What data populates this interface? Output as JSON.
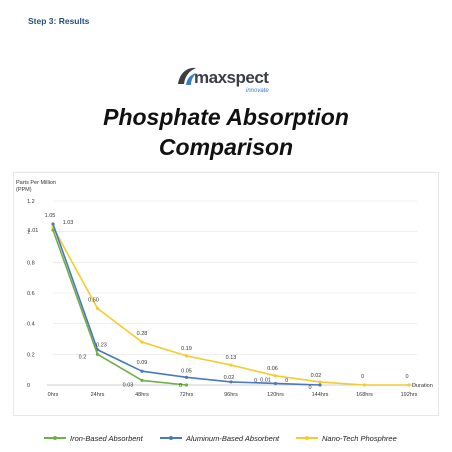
{
  "header": {
    "step_label": "Step 3: Results"
  },
  "logo": {
    "word": "maxspect",
    "tagline": "innovate"
  },
  "title_line1": "Phosphate Absorption",
  "title_line2": "Comparison",
  "colors": {
    "iron": "#6fb044",
    "aluminum": "#4a78b8",
    "nano": "#f2cc30",
    "grid": "#e4e4e4",
    "axis": "#bfbfbf",
    "label": "#333333"
  },
  "chart_data": {
    "type": "line",
    "ylabel": "Parts Per Million (PPM)",
    "ylabel_lines": [
      "Parts Per Million",
      "(PPM)"
    ],
    "xlabel": "Duration",
    "categories": [
      "0hrs",
      "24hrs",
      "48hrs",
      "72hrs",
      "96hrs",
      "120hrs",
      "144hrs",
      "168hrs",
      "192hrs"
    ],
    "ylim": [
      0,
      1.2
    ],
    "yticks": [
      0,
      0.2,
      0.4,
      0.6,
      0.8,
      1,
      1.2
    ],
    "ytick_labels": [
      "0",
      "0.2",
      "0.4",
      "0.6",
      "0.8",
      "1",
      "1.2"
    ],
    "grid": true,
    "legend_position": "bottom",
    "series": [
      {
        "name": "Iron-Based Absorbent",
        "color_key": "iron",
        "values": [
          1.01,
          0.2,
          0.03,
          0,
          null,
          null,
          null,
          null,
          null
        ],
        "labels": [
          "1.01",
          "0.2",
          "0.03",
          "0",
          null,
          null,
          null,
          null,
          null
        ]
      },
      {
        "name": "Aluminum-Based Absorbent",
        "color_key": "aluminum",
        "values": [
          1.05,
          0.23,
          0.09,
          0.05,
          0.02,
          0.01,
          0,
          null,
          null
        ],
        "labels": [
          "1.05",
          "0.23",
          "0.09",
          "0.05",
          "0.02",
          "0.01",
          "0",
          null,
          null
        ]
      },
      {
        "name": "Nano-Tech Phosphree",
        "color_key": "nano",
        "values": [
          1.03,
          0.5,
          0.28,
          0.19,
          0.13,
          0.06,
          0.02,
          0,
          0
        ],
        "labels": [
          "1.03",
          "0.50",
          "0.28",
          "0.19",
          "0.13",
          "0.06",
          "0.02",
          "0",
          "0"
        ]
      }
    ],
    "extra_labels": [
      {
        "text": "0",
        "x_index": 4.55,
        "y": 0.0
      },
      {
        "text": "0",
        "x_index": 5.25,
        "y": 0.0
      }
    ]
  }
}
